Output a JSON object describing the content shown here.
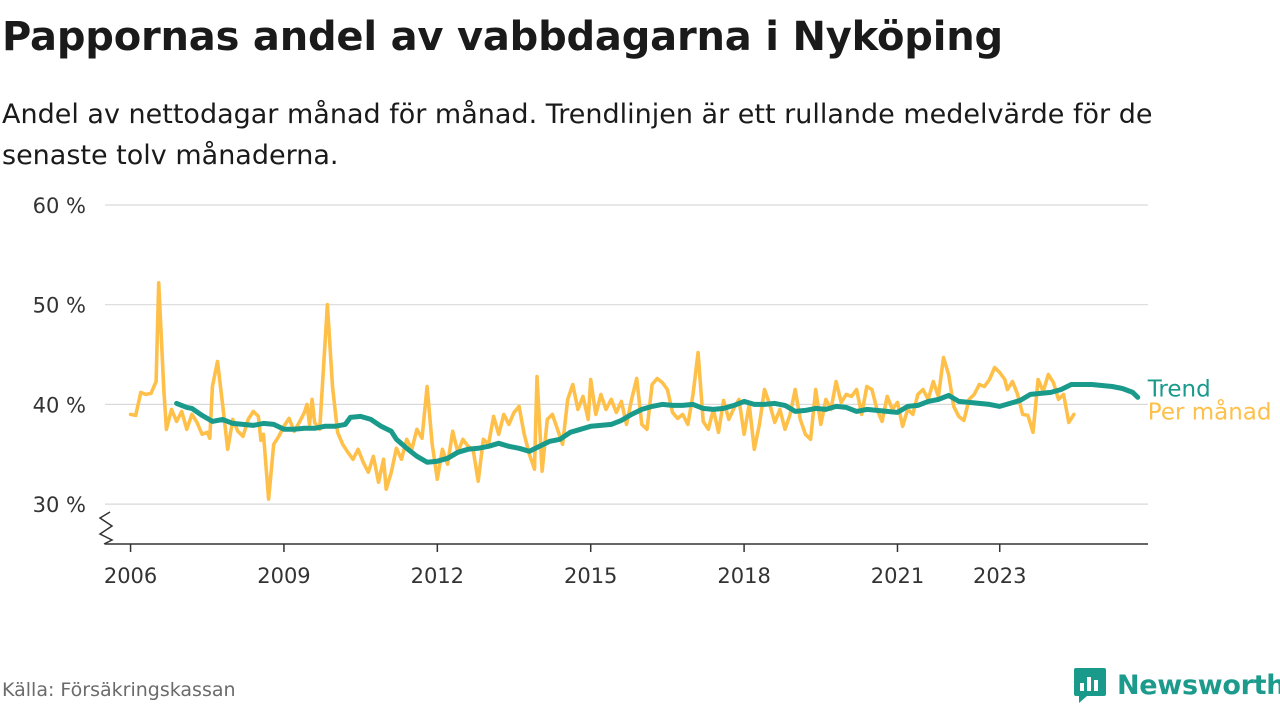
{
  "header": {
    "title": "Pappornas andel av vabbdagarna i Nyköping",
    "subtitle": "Andel av nettodagar månad för månad. Trendlinjen är ett rullande medelvärde för de senaste tolv månaderna."
  },
  "footer": {
    "source": "Källa: Försäkringskassan",
    "brand": "Newsworthy"
  },
  "colors": {
    "monthly": "#ffc04a",
    "trend": "#1a9a8b",
    "grid": "#d9d9d9",
    "axis": "#333333"
  },
  "chart_data": {
    "type": "line",
    "title": "Pappornas andel av vabbdagarna i Nyköping",
    "xlabel": "",
    "ylabel": "",
    "ylim": [
      26,
      60
    ],
    "yticks": [
      30,
      40,
      50,
      60
    ],
    "ytick_labels": [
      "30 %",
      "40 %",
      "50 %",
      "60 %"
    ],
    "xticks": [
      2006,
      2009,
      2012,
      2015,
      2018,
      2021,
      2023
    ],
    "xtick_labels": [
      "2006",
      "2009",
      "2012",
      "2015",
      "2018",
      "2021",
      "2023"
    ],
    "grid": true,
    "legend": "end-of-line labels",
    "series": [
      {
        "name": "Per månad",
        "color": "#ffc04a",
        "points": [
          [
            2006.0,
            39.0
          ],
          [
            2006.1,
            38.9
          ],
          [
            2006.2,
            41.2
          ],
          [
            2006.3,
            41.0
          ],
          [
            2006.4,
            41.1
          ],
          [
            2006.5,
            42.3
          ],
          [
            2006.55,
            52.2
          ],
          [
            2006.65,
            41.5
          ],
          [
            2006.7,
            37.5
          ],
          [
            2006.8,
            39.5
          ],
          [
            2006.9,
            38.3
          ],
          [
            2007.0,
            39.3
          ],
          [
            2007.1,
            37.5
          ],
          [
            2007.2,
            39.0
          ],
          [
            2007.3,
            38.2
          ],
          [
            2007.4,
            37.0
          ],
          [
            2007.5,
            37.2
          ],
          [
            2007.55,
            36.6
          ],
          [
            2007.6,
            41.8
          ],
          [
            2007.7,
            44.3
          ],
          [
            2007.8,
            40.0
          ],
          [
            2007.9,
            35.5
          ],
          [
            2008.0,
            38.5
          ],
          [
            2008.1,
            37.3
          ],
          [
            2008.2,
            36.8
          ],
          [
            2008.3,
            38.5
          ],
          [
            2008.4,
            39.3
          ],
          [
            2008.5,
            38.8
          ],
          [
            2008.55,
            36.4
          ],
          [
            2008.6,
            37.0
          ],
          [
            2008.7,
            30.5
          ],
          [
            2008.8,
            36.0
          ],
          [
            2008.9,
            36.8
          ],
          [
            2009.0,
            37.8
          ],
          [
            2009.1,
            38.6
          ],
          [
            2009.2,
            37.3
          ],
          [
            2009.3,
            38.2
          ],
          [
            2009.4,
            39.2
          ],
          [
            2009.45,
            40.0
          ],
          [
            2009.5,
            38.0
          ],
          [
            2009.55,
            40.5
          ],
          [
            2009.6,
            38.2
          ],
          [
            2009.7,
            37.5
          ],
          [
            2009.85,
            50.0
          ],
          [
            2009.95,
            41.8
          ],
          [
            2010.05,
            37.2
          ],
          [
            2010.15,
            36.0
          ],
          [
            2010.25,
            35.2
          ],
          [
            2010.35,
            34.5
          ],
          [
            2010.45,
            35.5
          ],
          [
            2010.55,
            34.2
          ],
          [
            2010.65,
            33.2
          ],
          [
            2010.75,
            34.8
          ],
          [
            2010.85,
            32.2
          ],
          [
            2010.95,
            34.5
          ],
          [
            2011.0,
            31.5
          ],
          [
            2011.1,
            33.2
          ],
          [
            2011.2,
            35.6
          ],
          [
            2011.3,
            34.5
          ],
          [
            2011.4,
            36.5
          ],
          [
            2011.5,
            35.5
          ],
          [
            2011.6,
            37.5
          ],
          [
            2011.7,
            36.6
          ],
          [
            2011.8,
            41.8
          ],
          [
            2011.9,
            36.0
          ],
          [
            2012.0,
            32.5
          ],
          [
            2012.1,
            35.5
          ],
          [
            2012.2,
            34.0
          ],
          [
            2012.3,
            37.3
          ],
          [
            2012.4,
            35.2
          ],
          [
            2012.5,
            36.5
          ],
          [
            2012.6,
            35.8
          ],
          [
            2012.7,
            35.5
          ],
          [
            2012.8,
            32.3
          ],
          [
            2012.9,
            36.5
          ],
          [
            2013.0,
            36.0
          ],
          [
            2013.1,
            38.8
          ],
          [
            2013.2,
            37.0
          ],
          [
            2013.3,
            39.0
          ],
          [
            2013.4,
            38.0
          ],
          [
            2013.5,
            39.2
          ],
          [
            2013.6,
            39.8
          ],
          [
            2013.7,
            37.0
          ],
          [
            2013.8,
            35.0
          ],
          [
            2013.9,
            33.5
          ],
          [
            2013.95,
            42.8
          ],
          [
            2014.05,
            33.3
          ],
          [
            2014.15,
            38.5
          ],
          [
            2014.25,
            39.0
          ],
          [
            2014.35,
            37.5
          ],
          [
            2014.45,
            36.0
          ],
          [
            2014.55,
            40.5
          ],
          [
            2014.65,
            42.0
          ],
          [
            2014.75,
            39.5
          ],
          [
            2014.85,
            40.8
          ],
          [
            2014.95,
            38.5
          ],
          [
            2015.0,
            42.5
          ],
          [
            2015.1,
            39.0
          ],
          [
            2015.2,
            41.0
          ],
          [
            2015.3,
            39.5
          ],
          [
            2015.4,
            40.5
          ],
          [
            2015.5,
            39.2
          ],
          [
            2015.6,
            40.3
          ],
          [
            2015.7,
            38.0
          ],
          [
            2015.8,
            40.5
          ],
          [
            2015.9,
            42.6
          ],
          [
            2016.0,
            38.0
          ],
          [
            2016.1,
            37.5
          ],
          [
            2016.2,
            42.0
          ],
          [
            2016.3,
            42.6
          ],
          [
            2016.4,
            42.2
          ],
          [
            2016.5,
            41.5
          ],
          [
            2016.6,
            39.2
          ],
          [
            2016.7,
            38.6
          ],
          [
            2016.8,
            39.0
          ],
          [
            2016.9,
            38.0
          ],
          [
            2017.0,
            41.0
          ],
          [
            2017.1,
            45.2
          ],
          [
            2017.2,
            38.3
          ],
          [
            2017.3,
            37.5
          ],
          [
            2017.4,
            39.5
          ],
          [
            2017.5,
            37.2
          ],
          [
            2017.6,
            40.4
          ],
          [
            2017.7,
            38.5
          ],
          [
            2017.8,
            39.6
          ],
          [
            2017.9,
            40.5
          ],
          [
            2018.0,
            37.0
          ],
          [
            2018.1,
            40.0
          ],
          [
            2018.2,
            35.5
          ],
          [
            2018.3,
            38.0
          ],
          [
            2018.4,
            41.5
          ],
          [
            2018.5,
            40.0
          ],
          [
            2018.6,
            38.2
          ],
          [
            2018.7,
            39.5
          ],
          [
            2018.8,
            37.5
          ],
          [
            2018.9,
            39.0
          ],
          [
            2019.0,
            41.5
          ],
          [
            2019.1,
            38.5
          ],
          [
            2019.2,
            37.0
          ],
          [
            2019.3,
            36.5
          ],
          [
            2019.4,
            41.5
          ],
          [
            2019.5,
            38.0
          ],
          [
            2019.6,
            40.5
          ],
          [
            2019.7,
            39.5
          ],
          [
            2019.8,
            42.3
          ],
          [
            2019.9,
            40.2
          ],
          [
            2020.0,
            41.0
          ],
          [
            2020.1,
            40.8
          ],
          [
            2020.2,
            41.5
          ],
          [
            2020.3,
            39.0
          ],
          [
            2020.4,
            41.8
          ],
          [
            2020.5,
            41.5
          ],
          [
            2020.6,
            39.5
          ],
          [
            2020.7,
            38.3
          ],
          [
            2020.8,
            40.8
          ],
          [
            2020.9,
            39.5
          ],
          [
            2021.0,
            40.2
          ],
          [
            2021.1,
            37.8
          ],
          [
            2021.2,
            39.5
          ],
          [
            2021.3,
            39.0
          ],
          [
            2021.4,
            41.0
          ],
          [
            2021.5,
            41.5
          ],
          [
            2021.6,
            40.5
          ],
          [
            2021.7,
            42.3
          ],
          [
            2021.8,
            40.8
          ],
          [
            2021.9,
            44.7
          ],
          [
            2022.0,
            43.0
          ],
          [
            2022.1,
            39.8
          ],
          [
            2022.2,
            38.8
          ],
          [
            2022.3,
            38.4
          ],
          [
            2022.4,
            40.5
          ],
          [
            2022.5,
            41.0
          ],
          [
            2022.6,
            42.0
          ],
          [
            2022.7,
            41.8
          ],
          [
            2022.8,
            42.5
          ],
          [
            2022.9,
            43.7
          ],
          [
            2023.0,
            43.2
          ],
          [
            2023.1,
            42.5
          ],
          [
            2023.15,
            41.5
          ],
          [
            2023.25,
            42.3
          ],
          [
            2023.35,
            41.0
          ],
          [
            2023.45,
            39.0
          ],
          [
            2023.55,
            38.9
          ],
          [
            2023.65,
            37.2
          ],
          [
            2023.75,
            42.5
          ],
          [
            2023.85,
            41.3
          ],
          [
            2023.95,
            43.0
          ],
          [
            2024.05,
            42.2
          ],
          [
            2024.15,
            40.5
          ],
          [
            2024.25,
            41.0
          ],
          [
            2024.35,
            38.2
          ],
          [
            2024.45,
            39.0
          ]
        ]
      },
      {
        "name": "Trend",
        "color": "#1a9a8b",
        "points": [
          [
            2006.9,
            40.1
          ],
          [
            2007.1,
            39.7
          ],
          [
            2007.2,
            39.6
          ],
          [
            2007.4,
            38.9
          ],
          [
            2007.6,
            38.3
          ],
          [
            2007.8,
            38.5
          ],
          [
            2008.0,
            38.1
          ],
          [
            2008.2,
            38.0
          ],
          [
            2008.4,
            37.9
          ],
          [
            2008.6,
            38.1
          ],
          [
            2008.8,
            38.0
          ],
          [
            2009.0,
            37.5
          ],
          [
            2009.2,
            37.5
          ],
          [
            2009.4,
            37.6
          ],
          [
            2009.6,
            37.6
          ],
          [
            2009.8,
            37.8
          ],
          [
            2010.0,
            37.8
          ],
          [
            2010.2,
            38.0
          ],
          [
            2010.3,
            38.7
          ],
          [
            2010.5,
            38.8
          ],
          [
            2010.7,
            38.5
          ],
          [
            2010.9,
            37.8
          ],
          [
            2011.1,
            37.3
          ],
          [
            2011.2,
            36.5
          ],
          [
            2011.4,
            35.6
          ],
          [
            2011.6,
            34.8
          ],
          [
            2011.8,
            34.2
          ],
          [
            2012.0,
            34.3
          ],
          [
            2012.2,
            34.6
          ],
          [
            2012.4,
            35.2
          ],
          [
            2012.6,
            35.5
          ],
          [
            2012.8,
            35.6
          ],
          [
            2013.0,
            35.8
          ],
          [
            2013.2,
            36.1
          ],
          [
            2013.4,
            35.8
          ],
          [
            2013.6,
            35.6
          ],
          [
            2013.8,
            35.3
          ],
          [
            2014.0,
            35.8
          ],
          [
            2014.2,
            36.3
          ],
          [
            2014.4,
            36.5
          ],
          [
            2014.6,
            37.2
          ],
          [
            2014.8,
            37.5
          ],
          [
            2015.0,
            37.8
          ],
          [
            2015.2,
            37.9
          ],
          [
            2015.4,
            38.0
          ],
          [
            2015.6,
            38.4
          ],
          [
            2015.8,
            39.0
          ],
          [
            2016.0,
            39.5
          ],
          [
            2016.2,
            39.8
          ],
          [
            2016.4,
            40.0
          ],
          [
            2016.6,
            39.9
          ],
          [
            2016.8,
            39.9
          ],
          [
            2017.0,
            40.0
          ],
          [
            2017.2,
            39.6
          ],
          [
            2017.4,
            39.5
          ],
          [
            2017.6,
            39.6
          ],
          [
            2017.8,
            39.9
          ],
          [
            2018.0,
            40.3
          ],
          [
            2018.2,
            40.0
          ],
          [
            2018.4,
            40.0
          ],
          [
            2018.6,
            40.1
          ],
          [
            2018.8,
            39.9
          ],
          [
            2019.0,
            39.3
          ],
          [
            2019.2,
            39.4
          ],
          [
            2019.4,
            39.6
          ],
          [
            2019.6,
            39.5
          ],
          [
            2019.8,
            39.8
          ],
          [
            2020.0,
            39.7
          ],
          [
            2020.2,
            39.3
          ],
          [
            2020.4,
            39.5
          ],
          [
            2020.6,
            39.4
          ],
          [
            2020.8,
            39.3
          ],
          [
            2021.0,
            39.2
          ],
          [
            2021.2,
            39.8
          ],
          [
            2021.4,
            39.9
          ],
          [
            2021.6,
            40.3
          ],
          [
            2021.8,
            40.5
          ],
          [
            2022.0,
            40.9
          ],
          [
            2022.2,
            40.3
          ],
          [
            2022.4,
            40.2
          ],
          [
            2022.6,
            40.1
          ],
          [
            2022.8,
            40.0
          ],
          [
            2023.0,
            39.8
          ],
          [
            2023.2,
            40.1
          ],
          [
            2023.4,
            40.4
          ],
          [
            2023.6,
            41.0
          ],
          [
            2023.8,
            41.1
          ],
          [
            2024.0,
            41.2
          ],
          [
            2024.2,
            41.5
          ],
          [
            2024.4,
            42.0
          ],
          [
            2024.6,
            42.0
          ],
          [
            2024.8,
            42.0
          ],
          [
            2025.0,
            41.9
          ],
          [
            2025.2,
            41.8
          ],
          [
            2025.4,
            41.6
          ],
          [
            2025.6,
            41.2
          ],
          [
            2025.7,
            40.7
          ]
        ]
      }
    ]
  }
}
